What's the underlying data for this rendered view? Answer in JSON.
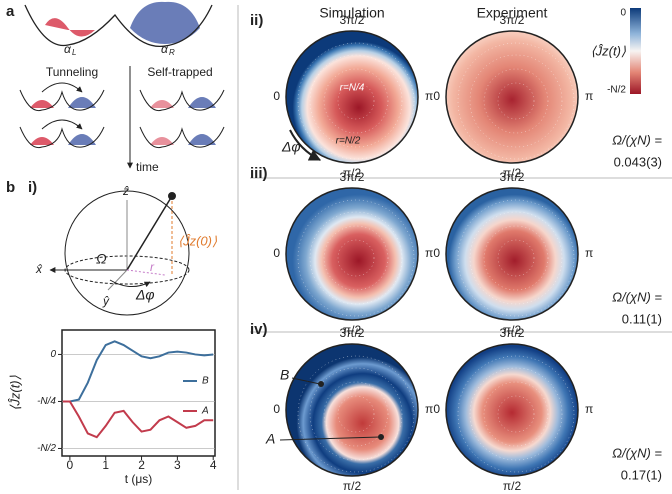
{
  "panel_a": {
    "label": "a",
    "alpha": [
      {
        "symbol": "α",
        "sub": "L"
      },
      {
        "symbol": "α",
        "sub": "R"
      }
    ],
    "tunneling": "Tunneling",
    "self_trapped": "Self-trapped",
    "time": "time"
  },
  "panel_b": {
    "label": "b",
    "sub_label": "i)",
    "axes": [
      "ẑ",
      "x̂",
      "ŷ"
    ],
    "omega": "Ω",
    "r": "r",
    "dphi": "Δφ",
    "jz0": "⟨Ĵz(0)⟩"
  },
  "chart_data": {
    "type": "line",
    "x_label": "t (μs)",
    "y_label": "⟨Ĵz(t)⟩",
    "x": [
      -0.2,
      0,
      0.25,
      0.5,
      0.75,
      1.0,
      1.25,
      1.5,
      1.75,
      2.0,
      2.25,
      2.5,
      2.75,
      3.0,
      3.25,
      3.5,
      3.75,
      4.0
    ],
    "series": [
      {
        "name": "B",
        "color": "#3d6f9c",
        "values": [
          -0.25,
          -0.25,
          -0.24,
          -0.15,
          -0.03,
          0.05,
          0.07,
          0.05,
          0.02,
          -0.01,
          -0.02,
          -0.01,
          0.01,
          0.015,
          0.01,
          0,
          -0.005,
          0
        ]
      },
      {
        "name": "A",
        "color": "#c23b4c",
        "values": [
          -0.25,
          -0.25,
          -0.33,
          -0.42,
          -0.44,
          -0.38,
          -0.31,
          -0.3,
          -0.36,
          -0.41,
          -0.4,
          -0.35,
          -0.33,
          -0.36,
          -0.39,
          -0.38,
          -0.35,
          -0.35
        ]
      }
    ],
    "xlim": [
      -0.22,
      4.05
    ],
    "ylim": [
      -0.54,
      0.13
    ],
    "xticks": [
      0,
      1,
      2,
      3,
      4
    ],
    "yticks": [
      0,
      {
        "value": -0.25,
        "label": "-N/4"
      },
      {
        "value": -0.5,
        "label": "-N/2"
      }
    ],
    "legend": "right"
  },
  "maps": {
    "headers": [
      "Simulation",
      "Experiment"
    ],
    "angles": [
      "3π/2",
      "0",
      "π",
      "π/2"
    ],
    "colorbar": {
      "label": "⟨Ĵz(t)⟩",
      "top": "0",
      "bottom": "-N/2"
    },
    "annotations": {
      "r_quarter": "r=N/4",
      "r_half": "r=N/2",
      "dphi": "Δφ",
      "B": "B",
      "A": "A"
    },
    "ratio_label": "Ω/(χN) =",
    "rows": [
      {
        "label": "ii)",
        "ratio": "0.043(3)"
      },
      {
        "label": "iii)",
        "ratio": "0.11(1)"
      },
      {
        "label": "iv)",
        "ratio": "0.17(1)"
      }
    ]
  }
}
